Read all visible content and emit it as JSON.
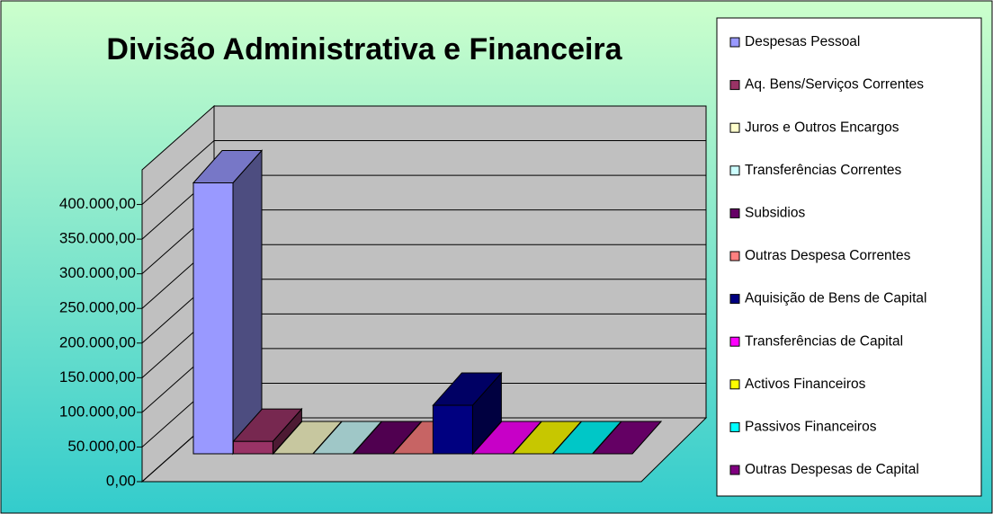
{
  "chart_data": {
    "type": "bar",
    "title": "Divisão Administrativa e Financeira",
    "ylim": [
      0,
      450000
    ],
    "yticks": [
      {
        "value": 0,
        "label": "0,00"
      },
      {
        "value": 50000,
        "label": "50.000,00"
      },
      {
        "value": 100000,
        "label": "100.000,00"
      },
      {
        "value": 150000,
        "label": "150.000,00"
      },
      {
        "value": 200000,
        "label": "200.000,00"
      },
      {
        "value": 250000,
        "label": "250.000,00"
      },
      {
        "value": 300000,
        "label": "300.000,00"
      },
      {
        "value": 350000,
        "label": "350.000,00"
      },
      {
        "value": 400000,
        "label": "400.000,00"
      }
    ],
    "grid": true,
    "series": [
      {
        "name": "Despesas Pessoal",
        "color": "#9999ff",
        "values": [
          391000
        ]
      },
      {
        "name": "Aq. Bens/Serviços Correntes",
        "color": "#993366",
        "values": [
          18000
        ]
      },
      {
        "name": "Juros e Outros Encargos",
        "color": "#ffffcc",
        "values": [
          0
        ]
      },
      {
        "name": "Transferências Correntes",
        "color": "#ccffff",
        "values": [
          0
        ]
      },
      {
        "name": "Subsidios",
        "color": "#660066",
        "values": [
          0
        ]
      },
      {
        "name": "Outras Despesa Correntes",
        "color": "#ff8080",
        "values": [
          0
        ]
      },
      {
        "name": "Aquisição de Bens de Capital",
        "color": "#000080",
        "values": [
          70000
        ]
      },
      {
        "name": "Transferências de Capital",
        "color": "#ff00ff",
        "values": [
          0
        ]
      },
      {
        "name": "Activos Financeiros",
        "color": "#ffff00",
        "values": [
          0
        ]
      },
      {
        "name": "Passivos Financeiros",
        "color": "#00ffff",
        "values": [
          0
        ]
      },
      {
        "name": "Outras Despesas de Capital",
        "color": "#800080",
        "values": [
          0
        ]
      }
    ]
  }
}
